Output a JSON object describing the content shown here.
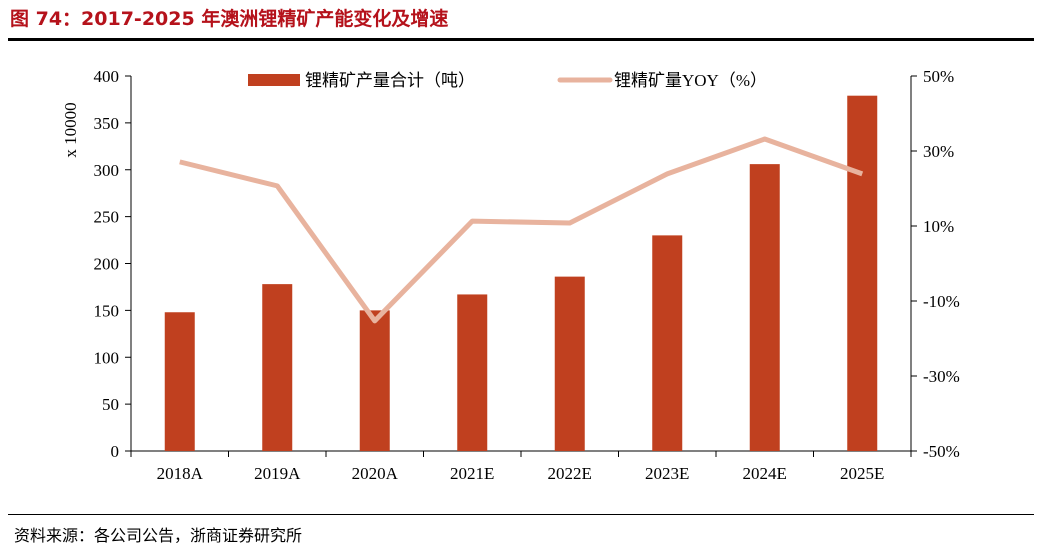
{
  "title": "图 74：2017-2025 年澳洲锂精矿产能变化及增速",
  "source": "资料来源：各公司公告，浙商证券研究所",
  "chart_data": {
    "type": "bar+line",
    "categories": [
      "2018A",
      "2019A",
      "2020A",
      "2021E",
      "2022E",
      "2023E",
      "2024E",
      "2025E"
    ],
    "series": [
      {
        "name": "锂精矿产量合计（吨）",
        "type": "bar",
        "axis": "left",
        "color": "#c0401f",
        "values": [
          148,
          178,
          150,
          167,
          186,
          230,
          306,
          379
        ]
      },
      {
        "name": "锂精矿量YOY（%）",
        "type": "line",
        "axis": "right",
        "color": "#e8b39e",
        "values": [
          27.1,
          20.7,
          -15.3,
          11.3,
          10.8,
          23.9,
          33.2,
          23.9
        ]
      }
    ],
    "ylabel": "x 10000",
    "ylim": [
      0,
      400
    ],
    "yticks": [
      "0",
      "50",
      "100",
      "150",
      "200",
      "250",
      "300",
      "350",
      "400"
    ],
    "y2lim": [
      -50,
      50
    ],
    "y2ticks": [
      "-50%",
      "-30%",
      "-10%",
      "10%",
      "30%",
      "50%"
    ],
    "grid": false,
    "legend": "top"
  }
}
